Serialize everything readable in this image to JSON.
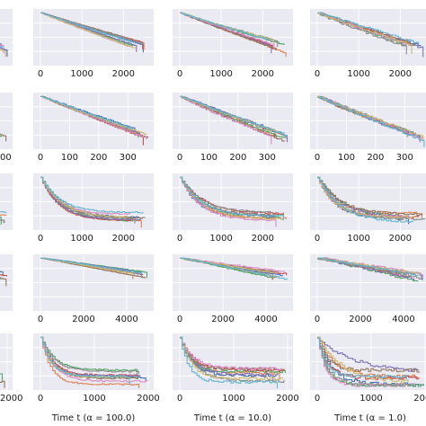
{
  "palette": [
    "#4c72b0",
    "#dd8452",
    "#55a868",
    "#c44e52",
    "#8172b3",
    "#937860",
    "#da8bc3",
    "#8c8c8c",
    "#ccb974",
    "#64b5cd"
  ],
  "chart_data": {
    "type": "line",
    "layout": "grid of step-survival-curve panels, 5 rows x 4 columns (leftmost column cropped)",
    "columns": [
      {
        "xlabel": ""
      },
      {
        "xlabel": "Time t (α = 100.0)"
      },
      {
        "xlabel": "Time t (α = 10.0)"
      },
      {
        "xlabel": "Time t (α = 1.0)"
      }
    ],
    "rows": [
      {
        "xlim": [
          0,
          2600
        ],
        "ticks": [
          "0",
          "1000",
          "2000"
        ],
        "series_count": 10,
        "end": [
          0.18,
          0.38
        ],
        "shape": "linear-steps",
        "columns_spread": [
          0.15,
          0.15,
          0.25,
          0.55
        ],
        "first_col_tick": ""
      },
      {
        "xlim": [
          0,
          370
        ],
        "ticks": [
          "0",
          "100",
          "200",
          "300"
        ],
        "series_count": 10,
        "end": [
          0.1,
          0.25
        ],
        "shape": "linear-steps",
        "columns_spread": [
          0.2,
          0.25,
          0.4,
          0.6
        ],
        "first_col_tick": "00"
      },
      {
        "xlim": [
          0,
          2600
        ],
        "ticks": [
          "0",
          "1000",
          "2000"
        ],
        "series_count": 10,
        "end": [
          0.12,
          0.3
        ],
        "shape": "fast-decay",
        "columns_spread": [
          0.2,
          0.3,
          0.4,
          0.6
        ],
        "first_col_tick": ""
      },
      {
        "xlim": [
          0,
          5000
        ],
        "ticks": [
          "0",
          "2000",
          "4000"
        ],
        "series_count": 10,
        "end": [
          0.55,
          0.72
        ],
        "shape": "slow-linear",
        "columns_spread": [
          0.15,
          0.15,
          0.3,
          0.6
        ],
        "first_col_tick": ""
      },
      {
        "xlim": [
          0,
          2000
        ],
        "ticks": [
          "0",
          "1000",
          "2000"
        ],
        "series_count": 10,
        "end": [
          0.05,
          0.4
        ],
        "shape": "exp-decay",
        "columns_spread": [
          0.3,
          0.35,
          0.6,
          0.9
        ],
        "first_col_tick": "2000"
      }
    ]
  }
}
